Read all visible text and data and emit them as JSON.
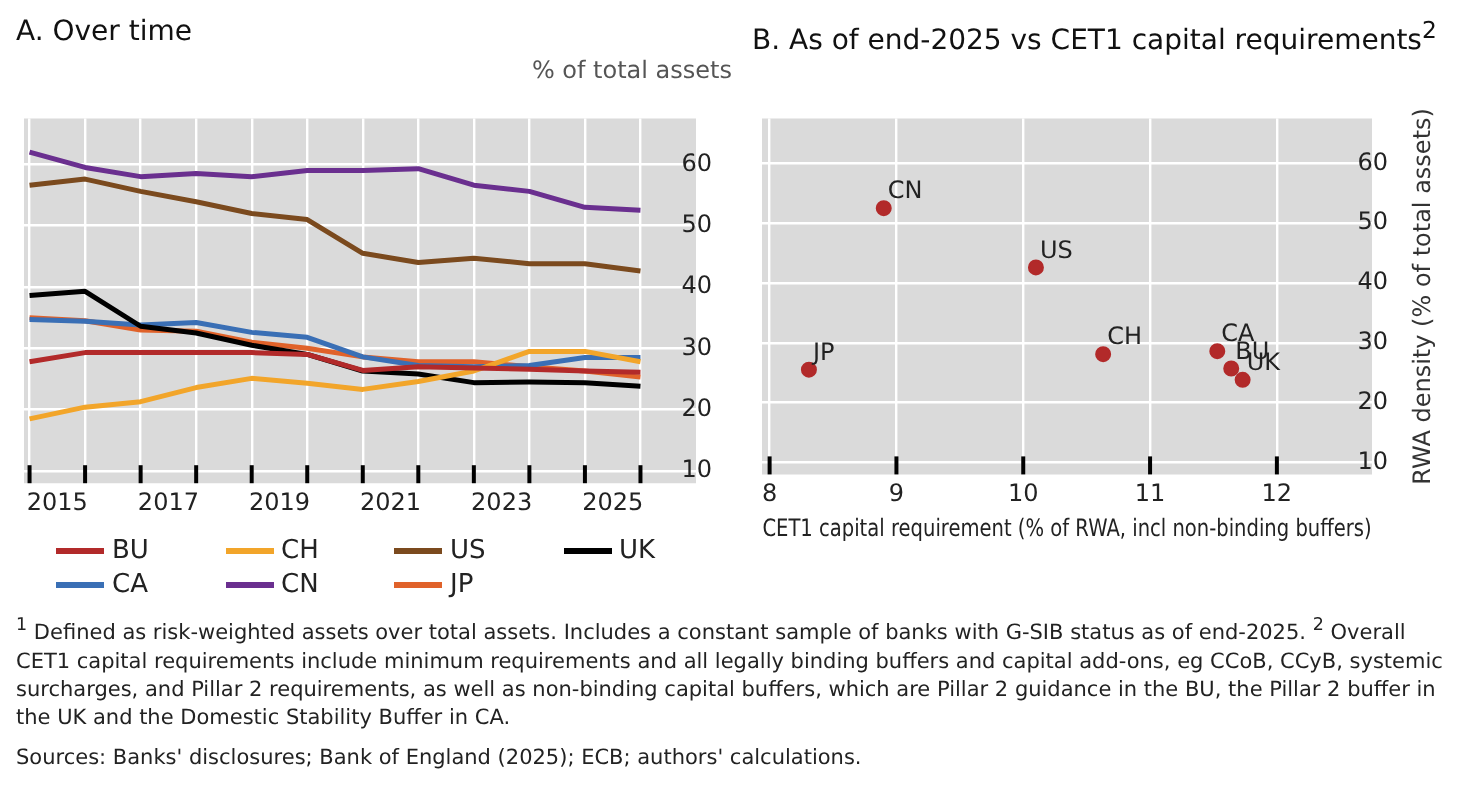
{
  "chart_data": [
    {
      "type": "line",
      "title": "A. Over time",
      "ylabel": "% of total assets",
      "x": [
        2014.5,
        2015.5,
        2016.5,
        2017.5,
        2018.5,
        2019.5,
        2020.5,
        2021.5,
        2022.5,
        2023.5,
        2024.5,
        2025.5
      ],
      "xlim": [
        2014.4,
        2026.5
      ],
      "xticks": [
        {
          "value": 2014.5,
          "label": null
        },
        2015,
        {
          "value": 2015.5,
          "label": null
        },
        {
          "value": 2016.5,
          "label": null
        },
        2017,
        {
          "value": 2017.5,
          "label": null
        },
        {
          "value": 2018.5,
          "label": null
        },
        2019,
        {
          "value": 2019.5,
          "label": null
        },
        {
          "value": 2020.5,
          "label": null
        },
        2021,
        {
          "value": 2021.5,
          "label": null
        },
        {
          "value": 2022.5,
          "label": null
        },
        2023,
        {
          "value": 2023.5,
          "label": null
        },
        {
          "value": 2024.5,
          "label": null
        },
        2025,
        {
          "value": 2025.5,
          "label": null
        }
      ],
      "ylim": [
        8,
        67.5
      ],
      "yticks": [
        10,
        20,
        30,
        40,
        50,
        60
      ],
      "grid": true,
      "legend": "bottom",
      "series": [
        {
          "name": "BU",
          "color": "#b22a2a",
          "values": [
            27.8,
            29.3,
            29.3,
            29.3,
            29.3,
            29,
            26.4,
            27,
            26.8,
            26.6,
            26.3,
            26.1
          ]
        },
        {
          "name": "CH",
          "color": "#f2a52a",
          "values": [
            18.5,
            20.4,
            21.3,
            23.6,
            25.1,
            24.3,
            23.3,
            24.6,
            26.3,
            29.5,
            29.5,
            27.8
          ]
        },
        {
          "name": "US",
          "color": "#7b4a1e",
          "values": [
            56.6,
            57.6,
            55.6,
            53.9,
            52,
            51,
            45.5,
            44,
            44.7,
            43.8,
            43.8,
            42.6
          ]
        },
        {
          "name": "UK",
          "color": "#000000",
          "values": [
            38.6,
            39.3,
            33.6,
            32.5,
            30.5,
            29,
            26.3,
            25.8,
            24.4,
            24.5,
            24.4,
            23.8
          ]
        },
        {
          "name": "CA",
          "color": "#3a6fb5",
          "values": [
            34.7,
            34.4,
            33.8,
            34.2,
            32.6,
            31.8,
            28.6,
            27.2,
            27,
            27.2,
            28.5,
            28.5
          ]
        },
        {
          "name": "CN",
          "color": "#6a2f8f",
          "values": [
            62,
            59.5,
            58,
            58.5,
            58,
            59,
            59,
            59.3,
            56.6,
            55.6,
            53,
            52.5
          ]
        },
        {
          "name": "JP",
          "color": "#e0622a",
          "values": [
            35,
            34.5,
            33,
            32.8,
            31,
            30,
            28.6,
            27.8,
            27.8,
            27,
            26.3,
            25.3
          ]
        }
      ],
      "annotations": [
        "$^{1}$  Defined as risk-weighted assets over total assets. Includes a constant sample of banks with G-SIB status as of end-2025.  $^{2}$  Overall CET1 capital requirements include minimum requirements and all legally binding buffers and capital add-ons, eg CCoB, CCyB, systemic surcharges, and Pillar 2 requirements, as well as non-binding capital buffers, which are Pillar 2 guidance in the BU, the Pillar 2 buffer in the UK and the Domestic Stability Buffer in CA.",
        "Sources: Banks' disclosures; Bank of England (2025); ECB; authors' calculations."
      ]
    },
    {
      "type": "scatter",
      "title": "B. As of end-2025 vs CET1 capital requirements$^{2}$",
      "xlabel": "CET1 capital requirement (% of RWA, incl non-binding buffers)",
      "ylabel": "RWA density (% of total assets)",
      "x": [
        8.9,
        10.1,
        10.63,
        11.53,
        11.64,
        11.73,
        8.31
      ],
      "values": [
        52.5,
        42.6,
        28.1,
        28.6,
        25.7,
        23.8,
        25.5
      ],
      "color": "#b22a2a",
      "marker": "circle",
      "xlim": [
        7.94,
        12.75
      ],
      "xticks": [
        8,
        9,
        10,
        11,
        12
      ],
      "ylim": [
        8,
        67.5
      ],
      "yticks": [
        10,
        20,
        30,
        40,
        50,
        60
      ],
      "grid": true,
      "annotations": [
        {
          "text": "CN",
          "x": 8.9,
          "y": 52.5
        },
        {
          "text": "US",
          "x": 10.1,
          "y": 42.6
        },
        {
          "text": "CH",
          "x": 10.63,
          "y": 28.1
        },
        {
          "text": "CA",
          "x": 11.53,
          "y": 28.6
        },
        {
          "text": "BU",
          "x": 11.64,
          "y": 25.7
        },
        {
          "text": "UK",
          "x": 11.73,
          "y": 23.8
        },
        {
          "text": "JP",
          "x": 8.31,
          "y": 25.5
        }
      ]
    }
  ]
}
